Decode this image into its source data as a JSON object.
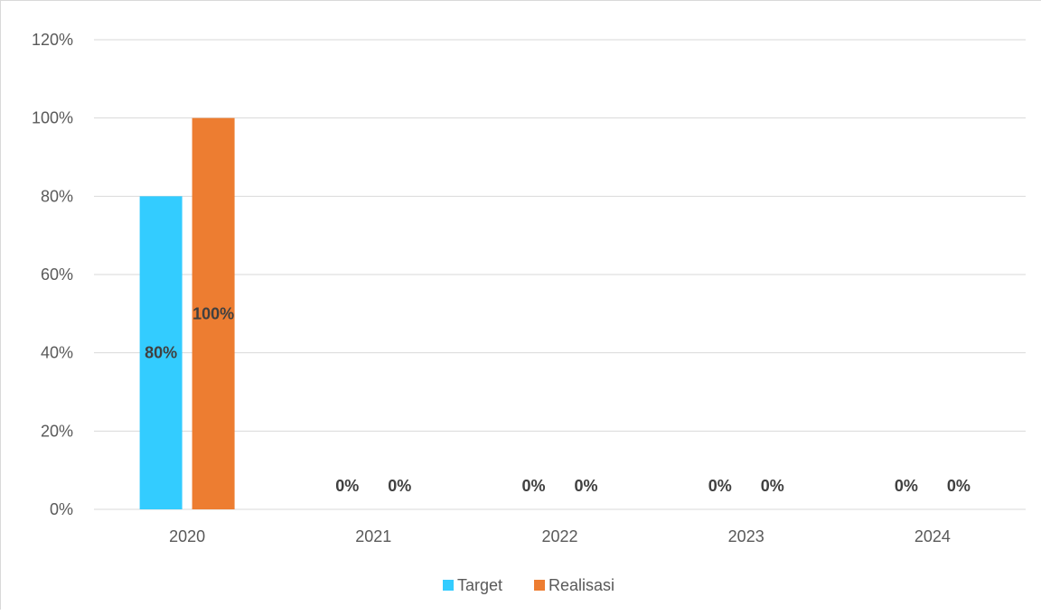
{
  "chart_data": {
    "type": "bar",
    "title": "",
    "xlabel": "",
    "ylabel": "",
    "categories": [
      "2020",
      "2021",
      "2022",
      "2023",
      "2024"
    ],
    "series": [
      {
        "name": "Target",
        "color": "#33CCFF",
        "values": [
          80,
          0,
          0,
          0,
          0
        ],
        "labels": [
          "80%",
          "0%",
          "0%",
          "0%",
          "0%"
        ]
      },
      {
        "name": "Realisasi",
        "color": "#ED7D31",
        "values": [
          100,
          0,
          0,
          0,
          0
        ],
        "labels": [
          "100%",
          "0%",
          "0%",
          "0%",
          "0%"
        ]
      }
    ],
    "ylim": [
      0,
      120
    ],
    "yticks": [
      0,
      20,
      40,
      60,
      80,
      100,
      120
    ],
    "ytick_labels": [
      "0%",
      "20%",
      "40%",
      "60%",
      "80%",
      "100%",
      "120%"
    ],
    "grid": true,
    "legend_position": "bottom"
  }
}
